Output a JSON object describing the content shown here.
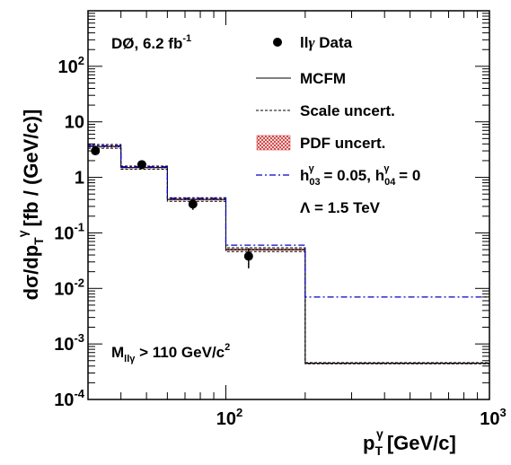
{
  "chart_data": {
    "type": "line",
    "title": "",
    "xlabel": {
      "main": "p",
      "sub": "T",
      "sup": "γ",
      "unit": "[GeV/c]"
    },
    "ylabel": {
      "main": "dσ/dp",
      "sub": "T",
      "sup": "γ",
      "unit": "[fb / (GeV/c)]"
    },
    "xlim": [
      30,
      1000
    ],
    "ylim": [
      0.0001,
      1000
    ],
    "xscale": "log",
    "yscale": "log",
    "x_ticks": [
      {
        "value": 100,
        "base": "10",
        "exp": "2"
      },
      {
        "value": 1000,
        "base": "10",
        "exp": "3"
      }
    ],
    "y_ticks": [
      {
        "value": 0.0001,
        "base": "10",
        "exp": "-4"
      },
      {
        "value": 0.001,
        "base": "10",
        "exp": "-3"
      },
      {
        "value": 0.01,
        "base": "10",
        "exp": "-2"
      },
      {
        "value": 0.1,
        "base": "10",
        "exp": "-1"
      },
      {
        "value": 1,
        "label": "1"
      },
      {
        "value": 10,
        "label": "10"
      },
      {
        "value": 100,
        "base": "10",
        "exp": "2"
      }
    ],
    "grid": false,
    "legend_placement": "top-right",
    "bin_edges": [
      30,
      40,
      60,
      100,
      200,
      1000
    ],
    "series": [
      {
        "name": "llγ Data",
        "type": "points",
        "x": [
          32,
          48,
          75,
          122
        ],
        "y": [
          3.0,
          1.7,
          0.33,
          0.038
        ],
        "yerr_low": [
          0.5,
          0.2,
          0.07,
          0.015
        ],
        "yerr_high": [
          0.5,
          0.2,
          0.07,
          0.015
        ]
      },
      {
        "name": "MCFM",
        "type": "step",
        "values": [
          3.6,
          1.5,
          0.4,
          0.05,
          0.00045
        ]
      },
      {
        "name": "Scale uncert.",
        "type": "step-band",
        "low": [
          3.35,
          1.4,
          0.37,
          0.046,
          0.00044
        ],
        "high": [
          3.9,
          1.6,
          0.43,
          0.054,
          0.00046
        ]
      },
      {
        "name": "PDF uncert.",
        "type": "band",
        "low": [
          3.45,
          1.45,
          0.385,
          0.048,
          0.00044
        ],
        "high": [
          3.75,
          1.55,
          0.415,
          0.052,
          0.00046
        ]
      },
      {
        "name": "h_03 = 0.05, h_04 = 0",
        "type": "step",
        "values": [
          3.7,
          1.55,
          0.42,
          0.06,
          0.007
        ]
      }
    ],
    "annotations": {
      "experiment": {
        "text": "DØ, 6.2 fb",
        "sup": "-1"
      },
      "lambda": "Λ = 1.5 TeV",
      "cut": {
        "main": "M",
        "sub": "llγ",
        "rest": " > 110 GeV/c",
        "sup": "2"
      }
    },
    "legend": {
      "data": {
        "main": "ll",
        "greek": "γ",
        "rest": " Data"
      },
      "mcfm": "MCFM",
      "scale": "Scale uncert.",
      "pdf": "PDF uncert.",
      "aqgc": {
        "h1": "h",
        "h1sub": "03",
        "h1sup": "γ",
        "v1": " = 0.05, ",
        "h2": "h",
        "h2sub": "04",
        "h2sup": "γ",
        "v2": " = 0"
      }
    },
    "colors": {
      "data": "#000000",
      "mcfm": "#000000",
      "scale": "#000000",
      "pdf": "#cc3333",
      "aqgc": "#0000cc"
    }
  }
}
